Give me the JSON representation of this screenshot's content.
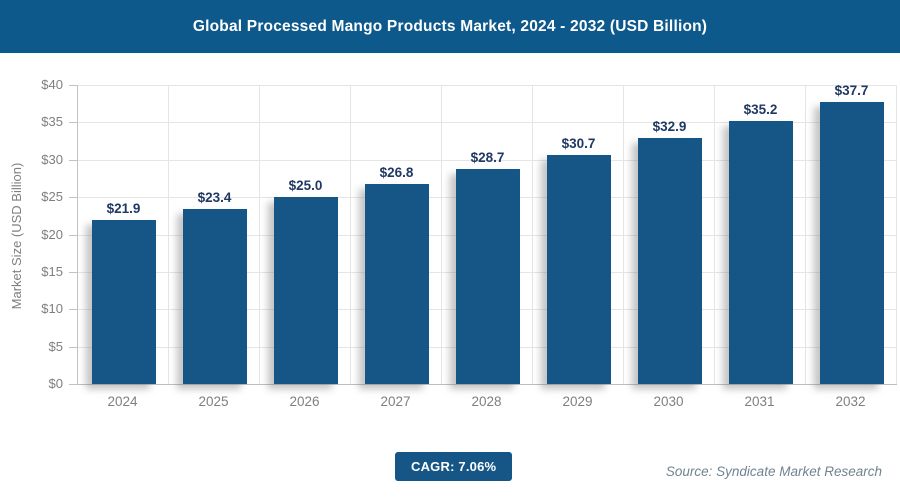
{
  "header": {
    "title": "Global Processed Mango Products Market, 2024 - 2032 (USD Billion)"
  },
  "chart_data": {
    "type": "bar",
    "title": "Global Processed Mango Products Market, 2024 - 2032 (USD Billion)",
    "categories": [
      "2024",
      "2025",
      "2026",
      "2027",
      "2028",
      "2029",
      "2030",
      "2031",
      "2032"
    ],
    "values": [
      21.9,
      23.4,
      25.0,
      26.8,
      28.7,
      30.7,
      32.9,
      35.2,
      37.7
    ],
    "bar_labels": [
      "$21.9",
      "$23.4",
      "$25.0",
      "$26.8",
      "$28.7",
      "$30.7",
      "$32.9",
      "$35.2",
      "$37.7"
    ],
    "xlabel": "",
    "ylabel": "Market Size (USD Billion)",
    "ylim": [
      0,
      40
    ],
    "ytick_step": 5,
    "ytick_labels": [
      "$0",
      "$5",
      "$10",
      "$15",
      "$20",
      "$25",
      "$30",
      "$35",
      "$40"
    ],
    "grid": true,
    "legend_position": "none",
    "bar_color": "#155687",
    "value_label_color": "#1f3864"
  },
  "footer": {
    "cagr_label": "CAGR: 7.06%",
    "source": "Source: Syndicate Market Research"
  },
  "colors": {
    "header_background": "#0d598c",
    "badge_background": "#155687",
    "bar": "#155687",
    "gridline": "#e5e5e5",
    "axis_line": "#c2c2c2",
    "tick_text": "#7f7f7f",
    "title_text": "#ffffff",
    "source_text": "#6f8391"
  }
}
